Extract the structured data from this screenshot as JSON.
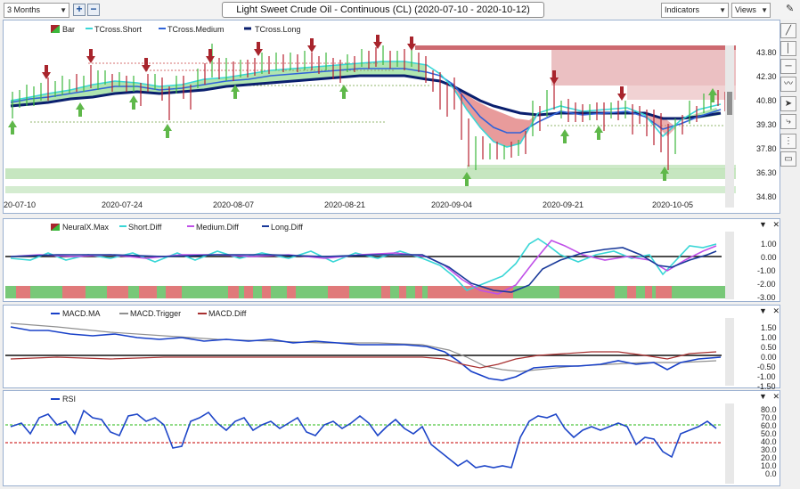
{
  "toolbar": {
    "range": "3 Months",
    "title": "Light Sweet Crude Oil - Continuous (CL) (2020-07-10 - 2020-10-12)",
    "indicators": "Indicators",
    "views": "Views"
  },
  "main": {
    "legend": [
      "Bar",
      "TCross.Short",
      "TCross.Medium",
      "TCross.Long"
    ],
    "y_ticks": [
      "43.80",
      "42.30",
      "40.80",
      "39.30",
      "37.80",
      "36.30",
      "34.80"
    ],
    "x_ticks": [
      "2020-07-10",
      "2020-07-24",
      "2020-08-07",
      "2020-08-21",
      "2020-09-04",
      "2020-09-21",
      "2020-10-05"
    ]
  },
  "neurax": {
    "legend": [
      "NeuralX.Max",
      "Short.Diff",
      "Medium.Diff",
      "Long.Diff"
    ],
    "y_ticks": [
      "1.00",
      "0.00",
      "-1.00",
      "-2.00",
      "-3.00"
    ]
  },
  "macd": {
    "legend": [
      "MACD.MA",
      "MACD.Trigger",
      "MACD.Diff"
    ],
    "y_ticks": [
      "1.50",
      "1.00",
      "0.50",
      "0.00",
      "-0.50",
      "-1.00",
      "-1.50"
    ]
  },
  "rsi": {
    "legend": [
      "RSI"
    ],
    "y_ticks": [
      "80.0",
      "70.0",
      "60.0",
      "50.0",
      "40.0",
      "30.0",
      "20.0",
      "10.0",
      "0.0"
    ]
  },
  "colors": {
    "short": "#39d6d6",
    "medium": "#2f63d8",
    "long": "#0a1f6e",
    "up_arrow": "#5fb84a",
    "down_arrow": "#a8242c",
    "bull_fill": "#70d070",
    "bear_fill": "#e07a7a",
    "resistance_zone": "#e3a5a8",
    "support_zone": "#b8e0b0",
    "medium_diff": "#c050e8",
    "macd_ma": "#1840c8",
    "macd_trigger": "#909090",
    "macd_diff": "#a83030",
    "rsi": "#1e46c8"
  }
}
